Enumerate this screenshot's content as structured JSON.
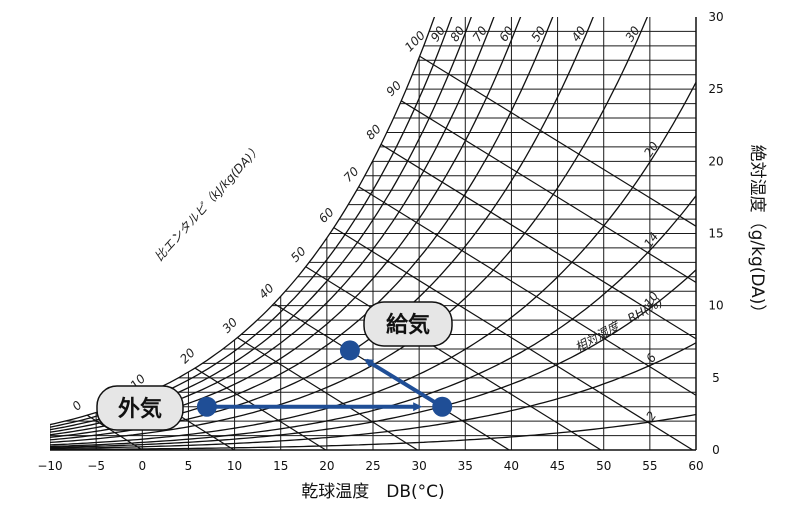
{
  "chart_data": {
    "type": "psychrometric",
    "xlabel": "乾球温度　DB(°C)",
    "ylabel": "絶対湿度（g/kg(DA)）",
    "x_ticks": [
      -10,
      -5,
      0,
      5,
      10,
      15,
      20,
      25,
      30,
      35,
      40,
      45,
      50,
      55,
      60
    ],
    "y_ticks": [
      0,
      5,
      10,
      15,
      20,
      25,
      30
    ],
    "xlim": [
      -10,
      60
    ],
    "ylim": [
      0,
      30
    ],
    "rh_label": "相対湿度　RH(%)",
    "rh_curves": [
      {
        "label": "100",
        "value": 100
      },
      {
        "label": "90",
        "value": 90
      },
      {
        "label": "80",
        "value": 80
      },
      {
        "label": "70",
        "value": 70
      },
      {
        "label": "60",
        "value": 60
      },
      {
        "label": "50",
        "value": 50
      },
      {
        "label": "40",
        "value": 40
      },
      {
        "label": "30",
        "value": 30
      },
      {
        "label": "20",
        "value": 20
      },
      {
        "label": "14",
        "value": 14
      },
      {
        "label": "10",
        "value": 10
      },
      {
        "label": "6",
        "value": 6
      },
      {
        "label": "2",
        "value": 2
      }
    ],
    "enthalpy_label": "比エンタルピ（kJ/kg(DA)）",
    "enthalpy_lines": [
      {
        "label": "0",
        "value": 0
      },
      {
        "label": "10",
        "value": 10
      },
      {
        "label": "20",
        "value": 20
      },
      {
        "label": "30",
        "value": 30
      },
      {
        "label": "40",
        "value": 40
      },
      {
        "label": "50",
        "value": 50
      },
      {
        "label": "60",
        "value": 60
      },
      {
        "label": "70",
        "value": 70
      },
      {
        "label": "80",
        "value": 80
      },
      {
        "label": "90",
        "value": 90
      },
      {
        "label": "100",
        "value": 100
      }
    ],
    "points": [
      {
        "name": "外気",
        "x": 7,
        "y": 3.0
      },
      {
        "name": "",
        "x": 32.5,
        "y": 3.0
      },
      {
        "name": "給気",
        "x": 22.5,
        "y": 6.9
      }
    ],
    "arrows": [
      {
        "from": [
          7,
          3.0
        ],
        "to": [
          30,
          3.0
        ]
      },
      {
        "from": [
          32.5,
          3.0
        ],
        "to": [
          24.3,
          6.2
        ]
      }
    ],
    "callouts": [
      {
        "text": "外気",
        "point": 0
      },
      {
        "text": "給気",
        "point": 2
      }
    ],
    "colors": {
      "marker": "#1f4e96",
      "lines": "#111111"
    }
  }
}
